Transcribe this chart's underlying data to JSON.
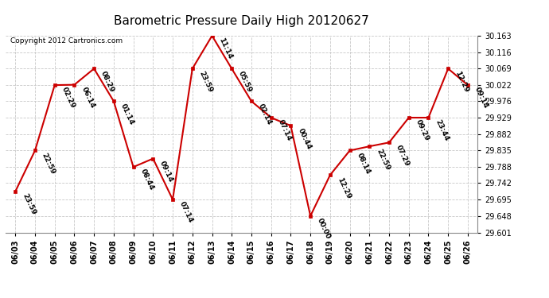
{
  "title": "Barometric Pressure Daily High 20120627",
  "copyright": "Copyright 2012 Cartronics.com",
  "x_labels": [
    "06/03",
    "06/04",
    "06/05",
    "06/06",
    "06/07",
    "06/08",
    "06/09",
    "06/10",
    "06/11",
    "06/12",
    "06/13",
    "06/14",
    "06/15",
    "06/16",
    "06/17",
    "06/18",
    "06/19",
    "06/20",
    "06/21",
    "06/22",
    "06/23",
    "06/24",
    "06/25",
    "06/26"
  ],
  "y_values": [
    29.718,
    29.835,
    30.022,
    30.023,
    30.069,
    29.976,
    29.788,
    29.812,
    29.695,
    30.069,
    30.163,
    30.069,
    29.976,
    29.929,
    29.906,
    29.648,
    29.765,
    29.835,
    29.847,
    29.858,
    29.929,
    29.929,
    30.069,
    30.022
  ],
  "time_labels": [
    "23:59",
    "22:59",
    "02:29",
    "06:14",
    "08:29",
    "01:14",
    "08:44",
    "09:14",
    "07:14",
    "23:59",
    "11:14",
    "05:59",
    "02:14",
    "07:14",
    "00:44",
    "00:00",
    "12:29",
    "08:14",
    "22:59",
    "07:29",
    "09:29",
    "23:44",
    "12:29",
    "09:14"
  ],
  "line_color": "#cc0000",
  "marker_color": "#cc0000",
  "bg_color": "#ffffff",
  "grid_color": "#c8c8c8",
  "ylim_min": 29.601,
  "ylim_max": 30.163,
  "y_ticks": [
    29.601,
    29.648,
    29.695,
    29.742,
    29.788,
    29.835,
    29.882,
    29.929,
    29.976,
    30.022,
    30.069,
    30.116,
    30.163
  ],
  "title_fontsize": 11,
  "annotation_fontsize": 6.5,
  "copyright_fontsize": 6.5,
  "tick_fontsize": 7
}
